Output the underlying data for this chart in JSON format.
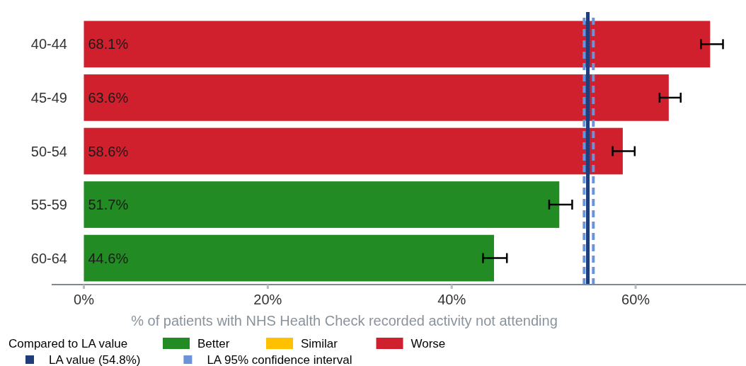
{
  "chart_data": {
    "type": "bar",
    "orientation": "horizontal",
    "xlabel": "% of patients with NHS Health Check recorded activity not attending",
    "legend_title": "Compared to LA value",
    "legend": "bottom",
    "categories": [
      "40-44",
      "45-49",
      "50-54",
      "55-59",
      "60-64"
    ],
    "series": [
      {
        "name": "Better",
        "color": "#238b23",
        "values": [
          null,
          null,
          null,
          51.7,
          44.6
        ],
        "errors": [
          null,
          null,
          null,
          [
            50.6,
            53.1
          ],
          [
            43.4,
            46.0
          ]
        ],
        "value_labels": [
          null,
          null,
          null,
          "51.7%",
          "44.6%"
        ]
      },
      {
        "name": "Similar",
        "color": "#ffc000",
        "values": [
          null,
          null,
          null,
          null,
          null
        ]
      },
      {
        "name": "Worse",
        "color": "#d0202e",
        "values": [
          68.1,
          63.6,
          58.6,
          null,
          null
        ],
        "errors": [
          [
            67.1,
            69.5
          ],
          [
            62.6,
            64.9
          ],
          [
            57.5,
            59.9
          ],
          null,
          null
        ],
        "value_labels": [
          "68.1%",
          "63.6%",
          "58.6%",
          null,
          null
        ]
      }
    ],
    "xlim": [
      -3.5,
      72
    ],
    "xticks": [
      {
        "value": 0,
        "label": "0%"
      },
      {
        "value": 20,
        "label": "20%"
      },
      {
        "value": 40,
        "label": "40%"
      },
      {
        "value": 60,
        "label": "60%"
      }
    ],
    "ref_lines": [
      {
        "axis": "x",
        "value": 54.4,
        "label": "LA 95% confidence interval",
        "color": "#6a93d8",
        "line_style": "dashed"
      },
      {
        "axis": "x",
        "value": 55.4,
        "color": "#6a93d8",
        "line_style": "dashed"
      },
      {
        "axis": "x",
        "value": 54.8,
        "label": "LA value (54.8%)",
        "color": "#1f3d7a",
        "line_style": "solid"
      }
    ]
  }
}
